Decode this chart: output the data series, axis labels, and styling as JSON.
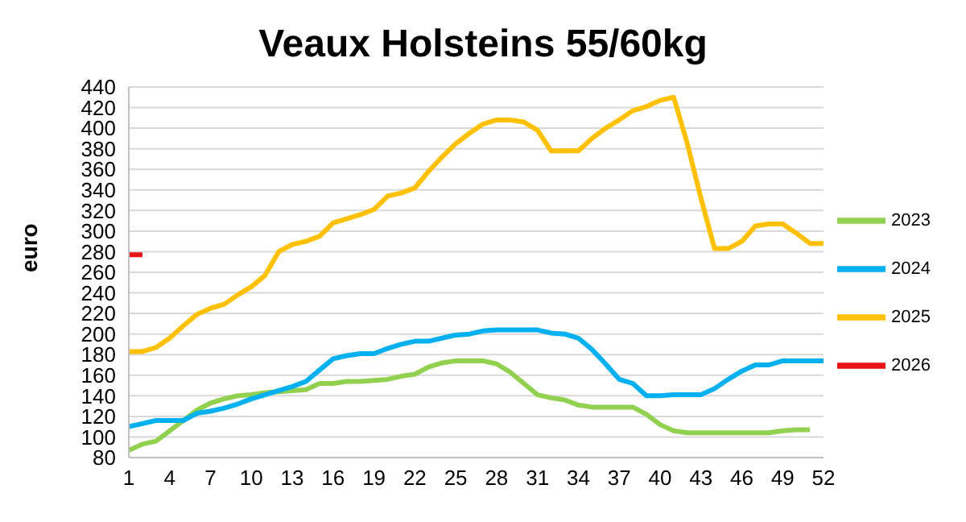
{
  "chart_data": {
    "type": "line",
    "title": "Veaux Holsteins 55/60kg",
    "ylabel": "euro",
    "x": [
      1,
      2,
      3,
      4,
      5,
      6,
      7,
      8,
      9,
      10,
      11,
      12,
      13,
      14,
      15,
      16,
      17,
      18,
      19,
      20,
      21,
      22,
      23,
      24,
      25,
      26,
      27,
      28,
      29,
      30,
      31,
      32,
      33,
      34,
      35,
      36,
      37,
      38,
      39,
      40,
      41,
      42,
      43,
      44,
      45,
      46,
      47,
      48,
      49,
      50,
      51,
      52
    ],
    "xlim": [
      1,
      52
    ],
    "xticks": [
      1,
      4,
      7,
      10,
      13,
      16,
      19,
      22,
      25,
      28,
      31,
      34,
      37,
      40,
      43,
      46,
      49,
      52
    ],
    "series": [
      {
        "name": "2023",
        "color": "#92d050",
        "values": [
          87,
          93,
          96,
          106,
          116,
          126,
          133,
          137,
          140,
          141,
          143,
          144,
          145,
          146,
          152,
          152,
          154,
          154,
          155,
          156,
          159,
          161,
          168,
          172,
          174,
          174,
          174,
          171,
          163,
          152,
          141,
          138,
          136,
          131,
          129,
          129,
          129,
          129,
          122,
          112,
          106,
          104,
          104,
          104,
          104,
          104,
          104,
          104,
          106,
          107,
          107,
          null
        ]
      },
      {
        "name": "2024",
        "color": "#00b0f0",
        "values": [
          110,
          113,
          116,
          116,
          116,
          123,
          125,
          128,
          132,
          137,
          141,
          145,
          149,
          154,
          165,
          176,
          179,
          181,
          181,
          186,
          190,
          193,
          193,
          196,
          199,
          200,
          203,
          204,
          204,
          204,
          204,
          201,
          200,
          196,
          185,
          171,
          156,
          152,
          140,
          140,
          141,
          141,
          141,
          147,
          156,
          164,
          170,
          170,
          174,
          174,
          174,
          174
        ]
      },
      {
        "name": "2025",
        "color": "#ffc000",
        "values": [
          183,
          183,
          187,
          196,
          208,
          219,
          225,
          229,
          238,
          246,
          257,
          280,
          287,
          290,
          295,
          308,
          312,
          316,
          321,
          334,
          337,
          342,
          358,
          372,
          385,
          395,
          404,
          408,
          408,
          406,
          398,
          378,
          378,
          378,
          390,
          400,
          408,
          417,
          421,
          427,
          430,
          385,
          332,
          283,
          283,
          290,
          305,
          307,
          307,
          298,
          288,
          288
        ]
      },
      {
        "name": "2026",
        "color": "#e81416",
        "values": [
          277,
          277,
          null,
          null,
          null,
          null,
          null,
          null,
          null,
          null,
          null,
          null,
          null,
          null,
          null,
          null,
          null,
          null,
          null,
          null,
          null,
          null,
          null,
          null,
          null,
          null,
          null,
          null,
          null,
          null,
          null,
          null,
          null,
          null,
          null,
          null,
          null,
          null,
          null,
          null,
          null,
          null,
          null,
          null,
          null,
          null,
          null,
          null,
          null,
          null,
          null,
          null
        ]
      }
    ],
    "ylim": [
      80,
      440
    ],
    "yticks": [
      80,
      100,
      120,
      140,
      160,
      180,
      200,
      220,
      240,
      260,
      280,
      300,
      320,
      340,
      360,
      380,
      400,
      420,
      440
    ],
    "grid": "y",
    "legend": "right",
    "marker": "none",
    "line_style": "solid"
  }
}
